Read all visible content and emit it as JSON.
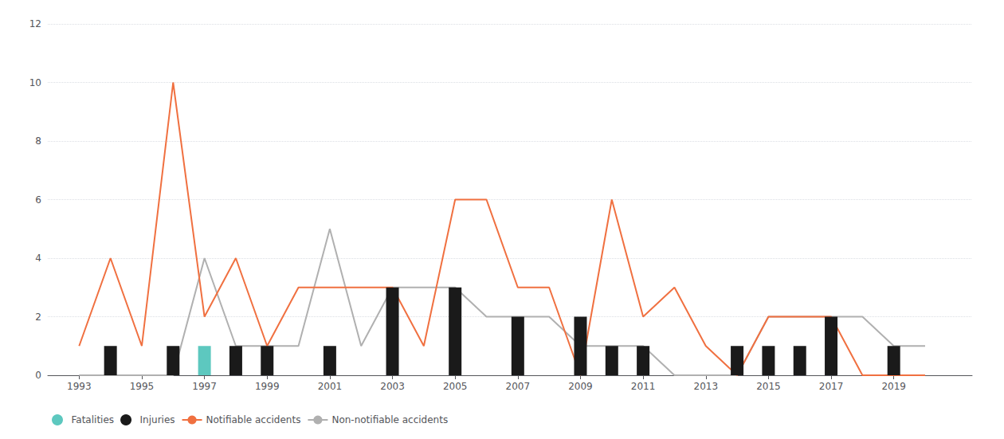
{
  "chart_data": {
    "type": "bar",
    "x": [
      1993,
      1994,
      1995,
      1996,
      1997,
      1998,
      1999,
      2000,
      2001,
      2002,
      2003,
      2004,
      2005,
      2006,
      2007,
      2008,
      2009,
      2010,
      2011,
      2012,
      2013,
      2014,
      2015,
      2016,
      2017,
      2018,
      2019,
      2020
    ],
    "series": [
      {
        "name": "Fatalities",
        "type": "bar",
        "color": "#5DC8BF",
        "values": [
          0,
          0,
          0,
          0,
          1,
          0,
          0,
          0,
          0,
          0,
          0,
          0,
          0,
          0,
          0,
          0,
          0,
          0,
          0,
          0,
          0,
          0,
          0,
          0,
          0,
          0,
          0,
          0
        ]
      },
      {
        "name": "Injuries",
        "type": "bar",
        "color": "#1a1a1a",
        "values": [
          0,
          1,
          0,
          1,
          0,
          1,
          1,
          0,
          1,
          0,
          3,
          0,
          3,
          0,
          2,
          0,
          2,
          1,
          1,
          0,
          0,
          1,
          1,
          1,
          2,
          0,
          1,
          0
        ]
      },
      {
        "name": "Notifiable accidents",
        "type": "line",
        "color": "#F07040",
        "values": [
          1,
          4,
          1,
          10,
          2,
          4,
          1,
          3,
          3,
          3,
          3,
          1,
          6,
          6,
          3,
          3,
          0,
          6,
          2,
          3,
          1,
          0,
          2,
          2,
          2,
          0,
          0,
          0
        ]
      },
      {
        "name": "Non-notifiable accidents",
        "type": "line",
        "color": "#b0b0b0",
        "values": [
          0,
          0,
          0,
          0,
          4,
          1,
          1,
          1,
          5,
          1,
          3,
          3,
          3,
          2,
          2,
          2,
          1,
          1,
          1,
          0,
          0,
          0,
          2,
          2,
          2,
          2,
          1,
          1
        ]
      }
    ],
    "xlim": [
      1992,
      2021.5
    ],
    "xticks": [
      1993,
      1995,
      1997,
      1999,
      2001,
      2003,
      2005,
      2007,
      2009,
      2011,
      2013,
      2015,
      2017,
      2019
    ],
    "ylim": [
      0,
      12
    ],
    "yticks": [
      0,
      2,
      4,
      6,
      8,
      10,
      12
    ],
    "grid": true,
    "legend": "bottom"
  }
}
